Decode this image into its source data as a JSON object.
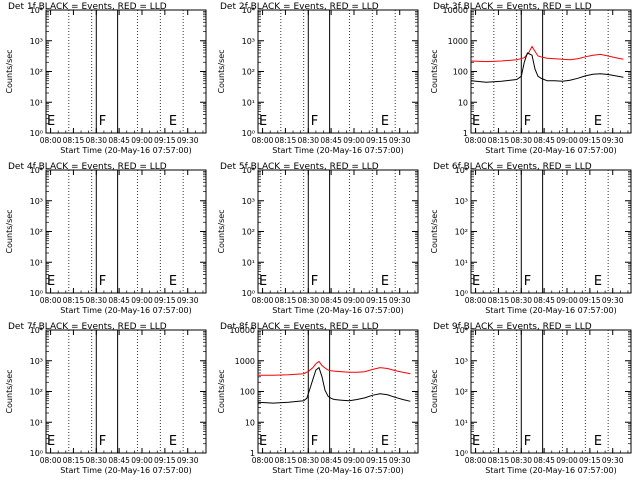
{
  "chart_data": [
    {
      "type": "line",
      "title": "Det 1f BLACK = Events, RED = LLD",
      "xlabel": "Start Time (20-May-16 07:57:00)",
      "ylabel": "Counts/sec",
      "yscale": "log",
      "ylim_exp": [
        0,
        4
      ],
      "ytick_labels": [
        "10⁰",
        "10¹",
        "10²",
        "10³",
        "10⁴"
      ],
      "xticks": [
        "08:00",
        "08:15",
        "08:30",
        "08:45",
        "09:00",
        "09:15",
        "09:30"
      ],
      "xlim_min": [
        0,
        105
      ],
      "markers": [
        {
          "label": "E",
          "x_min": 0
        },
        {
          "label": "F",
          "x_min": 34
        },
        {
          "label": "E",
          "x_min": 80
        }
      ],
      "solid_lines_min": [
        33,
        47
      ],
      "dotted_lines_min": [
        15,
        30,
        60,
        75,
        90
      ],
      "series": []
    },
    {
      "type": "line",
      "title": "Det 2f BLACK = Events, RED = LLD",
      "xlabel": "Start Time (20-May-16 07:57:00)",
      "ylabel": "Counts/sec",
      "yscale": "log",
      "ylim_exp": [
        0,
        4
      ],
      "ytick_labels": [
        "10⁰",
        "10¹",
        "10²",
        "10³",
        "10⁴"
      ],
      "xticks": [
        "08:00",
        "08:15",
        "08:30",
        "08:45",
        "09:00",
        "09:15",
        "09:30"
      ],
      "xlim_min": [
        0,
        105
      ],
      "markers": [
        {
          "label": "E",
          "x_min": 0
        },
        {
          "label": "F",
          "x_min": 34
        },
        {
          "label": "E",
          "x_min": 80
        }
      ],
      "solid_lines_min": [
        33,
        47
      ],
      "dotted_lines_min": [
        15,
        30,
        60,
        75,
        90
      ],
      "series": []
    },
    {
      "type": "line",
      "title": "Det 3f BLACK = Events, RED = LLD",
      "xlabel": "Start Time (20-May-16 07:57:00)",
      "ylabel": "Counts/sec",
      "yscale": "log",
      "ylim_exp": [
        0,
        4
      ],
      "ytick_labels": [
        "1",
        "10",
        "100",
        "1000",
        "10000"
      ],
      "xticks": [
        "08:00",
        "08:15",
        "08:30",
        "08:45",
        "09:00",
        "09:15",
        "09:30"
      ],
      "xlim_min": [
        0,
        105
      ],
      "markers": [
        {
          "label": "E",
          "x_min": 0
        },
        {
          "label": "F",
          "x_min": 34
        },
        {
          "label": "E",
          "x_min": 80
        }
      ],
      "solid_lines_min": [
        33,
        47
      ],
      "dotted_lines_min": [
        15,
        30,
        60,
        75,
        90
      ],
      "series": [
        {
          "color": "#ff0000",
          "x": [
            0,
            10,
            20,
            30,
            35,
            38,
            40,
            42,
            44,
            47,
            50,
            55,
            60,
            65,
            70,
            75,
            80,
            85,
            90,
            95,
            100
          ],
          "y": [
            220,
            210,
            220,
            240,
            280,
            420,
            650,
            450,
            320,
            290,
            270,
            260,
            250,
            240,
            260,
            300,
            340,
            360,
            320,
            280,
            250
          ]
        },
        {
          "color": "#000000",
          "x": [
            0,
            10,
            20,
            30,
            33,
            35,
            37,
            40,
            42,
            44,
            46,
            48,
            50,
            55,
            60,
            65,
            70,
            75,
            80,
            85,
            90,
            95,
            100
          ],
          "y": [
            50,
            45,
            48,
            55,
            70,
            200,
            400,
            340,
            120,
            70,
            60,
            55,
            50,
            50,
            48,
            52,
            60,
            72,
            82,
            85,
            80,
            72,
            65
          ]
        }
      ]
    },
    {
      "type": "line",
      "title": "Det 4f BLACK = Events, RED = LLD",
      "xlabel": "Start Time (20-May-16 07:57:00)",
      "ylabel": "Counts/sec",
      "yscale": "log",
      "ylim_exp": [
        0,
        4
      ],
      "ytick_labels": [
        "10⁰",
        "10¹",
        "10²",
        "10³",
        "10⁴"
      ],
      "xticks": [
        "08:00",
        "08:15",
        "08:30",
        "08:45",
        "09:00",
        "09:15",
        "09:30"
      ],
      "xlim_min": [
        0,
        105
      ],
      "markers": [
        {
          "label": "E",
          "x_min": 0
        },
        {
          "label": "F",
          "x_min": 34
        },
        {
          "label": "E",
          "x_min": 80
        }
      ],
      "solid_lines_min": [
        33,
        47
      ],
      "dotted_lines_min": [
        15,
        30,
        60,
        75,
        90
      ],
      "series": []
    },
    {
      "type": "line",
      "title": "Det 5f BLACK = Events, RED = LLD",
      "xlabel": "Start Time (20-May-16 07:57:00)",
      "ylabel": "Counts/sec",
      "yscale": "log",
      "ylim_exp": [
        0,
        4
      ],
      "ytick_labels": [
        "10⁰",
        "10¹",
        "10²",
        "10³",
        "10⁴"
      ],
      "xticks": [
        "08:00",
        "08:15",
        "08:30",
        "08:45",
        "09:00",
        "09:15",
        "09:30"
      ],
      "xlim_min": [
        0,
        105
      ],
      "markers": [
        {
          "label": "E",
          "x_min": 0
        },
        {
          "label": "F",
          "x_min": 34
        },
        {
          "label": "E",
          "x_min": 80
        }
      ],
      "solid_lines_min": [
        33,
        47
      ],
      "dotted_lines_min": [
        15,
        30,
        60,
        75,
        90
      ],
      "series": []
    },
    {
      "type": "line",
      "title": "Det 6f BLACK = Events, RED = LLD",
      "xlabel": "Start Time (20-May-16 07:57:00)",
      "ylabel": "Counts/sec",
      "yscale": "log",
      "ylim_exp": [
        0,
        4
      ],
      "ytick_labels": [
        "10⁰",
        "10¹",
        "10²",
        "10³",
        "10⁴"
      ],
      "xticks": [
        "08:00",
        "08:15",
        "08:30",
        "08:45",
        "09:00",
        "09:15",
        "09:30"
      ],
      "xlim_min": [
        0,
        105
      ],
      "markers": [
        {
          "label": "E",
          "x_min": 0
        },
        {
          "label": "F",
          "x_min": 34
        },
        {
          "label": "E",
          "x_min": 80
        }
      ],
      "solid_lines_min": [
        33,
        47
      ],
      "dotted_lines_min": [
        15,
        30,
        60,
        75,
        90
      ],
      "series": []
    },
    {
      "type": "line",
      "title": "Det 7f BLACK = Events, RED = LLD",
      "xlabel": "Start Time (20-May-16 07:57:00)",
      "ylabel": "Counts/sec",
      "yscale": "log",
      "ylim_exp": [
        0,
        4
      ],
      "ytick_labels": [
        "10⁰",
        "10¹",
        "10²",
        "10³",
        "10⁴"
      ],
      "xticks": [
        "08:00",
        "08:15",
        "08:30",
        "08:45",
        "09:00",
        "09:15",
        "09:30"
      ],
      "xlim_min": [
        0,
        105
      ],
      "markers": [
        {
          "label": "E",
          "x_min": 0
        },
        {
          "label": "F",
          "x_min": 34
        },
        {
          "label": "E",
          "x_min": 80
        }
      ],
      "solid_lines_min": [
        33,
        47
      ],
      "dotted_lines_min": [
        15,
        30,
        60,
        75,
        90
      ],
      "series": []
    },
    {
      "type": "line",
      "title": "Det 8f BLACK = Events, RED = LLD",
      "xlabel": "Start Time (20-May-16 07:57:00)",
      "ylabel": "Counts/sec",
      "yscale": "log",
      "ylim_exp": [
        0,
        4
      ],
      "ytick_labels": [
        "1",
        "10",
        "100",
        "1000",
        "10000"
      ],
      "xticks": [
        "08:00",
        "08:15",
        "08:30",
        "08:45",
        "09:00",
        "09:15",
        "09:30"
      ],
      "xlim_min": [
        0,
        105
      ],
      "markers": [
        {
          "label": "E",
          "x_min": 0
        },
        {
          "label": "F",
          "x_min": 34
        },
        {
          "label": "E",
          "x_min": 80
        }
      ],
      "solid_lines_min": [
        33,
        47
      ],
      "dotted_lines_min": [
        15,
        30,
        60,
        75,
        90
      ],
      "series": [
        {
          "color": "#ff0000",
          "x": [
            0,
            10,
            20,
            30,
            33,
            36,
            38,
            40,
            42,
            44,
            46,
            48,
            50,
            55,
            60,
            65,
            70,
            75,
            80,
            85,
            90,
            95,
            100
          ],
          "y": [
            340,
            340,
            350,
            380,
            450,
            600,
            800,
            950,
            700,
            580,
            500,
            470,
            460,
            440,
            420,
            420,
            440,
            520,
            600,
            560,
            480,
            420,
            380
          ]
        },
        {
          "color": "#000000",
          "x": [
            0,
            10,
            20,
            30,
            32,
            34,
            36,
            38,
            40,
            42,
            44,
            46,
            48,
            50,
            55,
            60,
            65,
            70,
            75,
            80,
            85,
            90,
            95,
            100
          ],
          "y": [
            45,
            42,
            45,
            50,
            60,
            120,
            250,
            500,
            600,
            300,
            110,
            70,
            60,
            55,
            52,
            50,
            55,
            62,
            75,
            85,
            78,
            65,
            55,
            48
          ]
        }
      ]
    },
    {
      "type": "line",
      "title": "Det 9f BLACK = Events, RED = LLD",
      "xlabel": "Start Time (20-May-16 07:57:00)",
      "ylabel": "Counts/sec",
      "yscale": "log",
      "ylim_exp": [
        0,
        4
      ],
      "ytick_labels": [
        "10⁰",
        "10¹",
        "10²",
        "10³",
        "10⁴"
      ],
      "xticks": [
        "08:00",
        "08:15",
        "08:30",
        "08:45",
        "09:00",
        "09:15",
        "09:30"
      ],
      "xlim_min": [
        0,
        105
      ],
      "markers": [
        {
          "label": "E",
          "x_min": 0
        },
        {
          "label": "F",
          "x_min": 34
        },
        {
          "label": "E",
          "x_min": 80
        }
      ],
      "solid_lines_min": [
        33,
        47
      ],
      "dotted_lines_min": [
        15,
        30,
        60,
        75,
        90
      ],
      "series": []
    }
  ]
}
